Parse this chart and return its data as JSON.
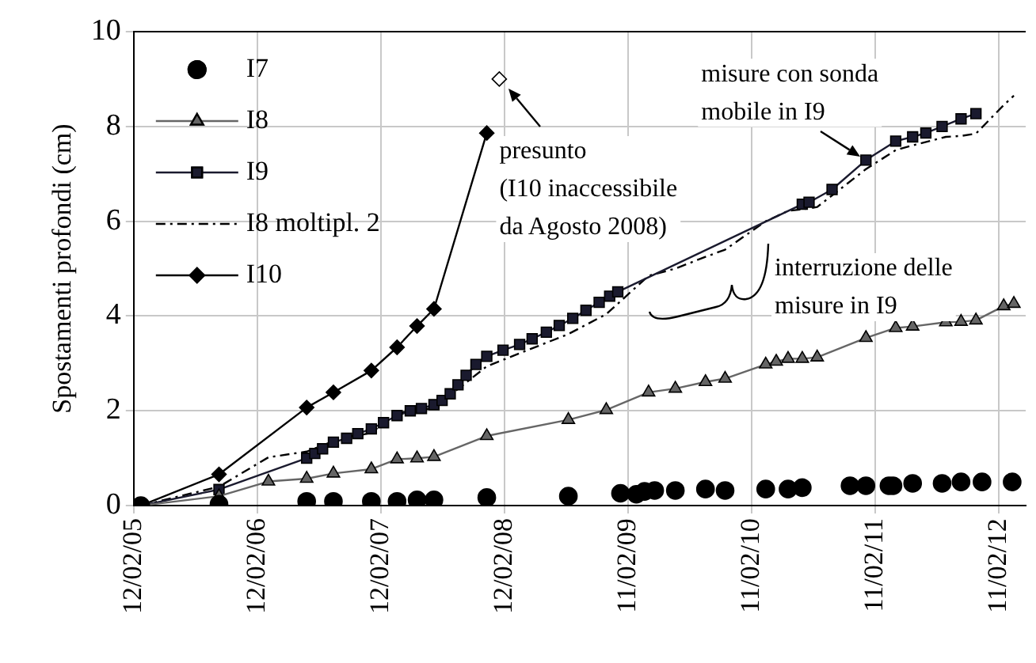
{
  "chart_data": {
    "type": "line",
    "ylabel": "Spostamenti profondi (cm)",
    "xlim": [
      "2005-02-12",
      "2012-05-01"
    ],
    "xticks": [
      {
        "value": "2005-02-12",
        "label": "12/02/05"
      },
      {
        "value": "2006-02-12",
        "label": "12/02/06"
      },
      {
        "value": "2007-02-12",
        "label": "12/02/07"
      },
      {
        "value": "2008-02-12",
        "label": "12/02/08"
      },
      {
        "value": "2009-02-11",
        "label": "11/02/09"
      },
      {
        "value": "2010-02-11",
        "label": "11/02/10"
      },
      {
        "value": "2011-02-11",
        "label": "11/02/11"
      },
      {
        "value": "2012-02-11",
        "label": "11/02/12"
      }
    ],
    "ylim": [
      0,
      10
    ],
    "yticks": [
      0,
      2,
      4,
      6,
      8,
      10
    ],
    "grid": true,
    "legend": "top left",
    "series": [
      {
        "name": "I7",
        "type": "scatter",
        "marker": "circle",
        "color": "#000000",
        "x": [
          "2005-03-05",
          "2005-10-22",
          "2006-07-08",
          "2006-09-25",
          "2007-01-15",
          "2007-04-01",
          "2007-05-30",
          "2007-07-19",
          "2007-12-22",
          "2008-08-19",
          "2009-01-20",
          "2009-03-08",
          "2009-04-01",
          "2009-05-01",
          "2009-07-01",
          "2009-09-28",
          "2009-11-25",
          "2010-03-25",
          "2010-05-30",
          "2010-07-11",
          "2010-11-29",
          "2011-01-15",
          "2011-03-24",
          "2011-04-05",
          "2011-06-02",
          "2011-08-28",
          "2011-10-23",
          "2011-12-24",
          "2012-03-22"
        ],
        "values": [
          0,
          0.03,
          0.09,
          0.09,
          0.09,
          0.09,
          0.12,
          0.12,
          0.17,
          0.2,
          0.26,
          0.24,
          0.3,
          0.32,
          0.32,
          0.35,
          0.32,
          0.35,
          0.35,
          0.38,
          0.42,
          0.42,
          0.42,
          0.42,
          0.47,
          0.47,
          0.5,
          0.5,
          0.5
        ]
      },
      {
        "name": "I8",
        "type": "line",
        "marker": "triangle",
        "color": "#666666",
        "x": [
          "2005-03-05",
          "2005-10-22",
          "2006-03-17",
          "2006-07-08",
          "2006-09-25",
          "2007-01-15",
          "2007-04-01",
          "2007-05-30",
          "2007-07-19",
          "2007-12-22",
          "2008-08-19",
          "2008-12-09",
          "2009-04-13",
          "2009-07-01",
          "2009-09-28",
          "2009-11-25",
          "2010-03-25",
          "2010-04-25",
          "2010-05-30",
          "2010-07-11",
          "2010-08-24",
          "2011-01-15",
          "2011-04-13",
          "2011-06-02",
          "2011-09-08",
          "2011-10-23",
          "2011-12-06",
          "2012-02-26",
          "2012-03-27"
        ],
        "values": [
          0,
          0.2,
          0.51,
          0.57,
          0.68,
          0.77,
          0.98,
          1.0,
          1.03,
          1.47,
          1.81,
          2.02,
          2.39,
          2.47,
          2.61,
          2.68,
          2.98,
          3.04,
          3.1,
          3.1,
          3.13,
          3.54,
          3.75,
          3.78,
          3.87,
          3.88,
          3.91,
          4.21,
          4.26
        ]
      },
      {
        "name": "I9",
        "type": "line",
        "marker": "square",
        "color": "#1a1a2e",
        "x": [
          "2005-03-05",
          "2005-10-22",
          "2006-07-08",
          "2006-08-01",
          "2006-08-24",
          "2006-09-25",
          "2006-11-03",
          "2006-12-06",
          "2007-01-15",
          "2007-02-20",
          "2007-04-01",
          "2007-05-10",
          "2007-06-12",
          "2007-07-19",
          "2007-08-12",
          "2007-09-05",
          "2007-09-28",
          "2007-10-22",
          "2007-11-20",
          "2007-12-22",
          "2008-02-08",
          "2008-03-28",
          "2008-05-04",
          "2008-06-15",
          "2008-07-23",
          "2008-09-01",
          "2008-10-10",
          "2008-11-18",
          "2008-12-19",
          "2009-01-12",
          "2010-07-11",
          "2010-07-31",
          "2010-10-07",
          "2011-01-15",
          "2011-04-13",
          "2011-06-02",
          "2011-07-11",
          "2011-08-28",
          "2011-10-23",
          "2011-12-06"
        ],
        "values": [
          0,
          0.34,
          1.0,
          1.1,
          1.2,
          1.34,
          1.42,
          1.52,
          1.62,
          1.75,
          1.9,
          2.0,
          2.05,
          2.13,
          2.22,
          2.36,
          2.55,
          2.75,
          2.98,
          3.15,
          3.28,
          3.4,
          3.52,
          3.66,
          3.8,
          3.95,
          4.12,
          4.29,
          4.42,
          4.51,
          6.36,
          6.4,
          6.67,
          7.29,
          7.69,
          7.78,
          7.86,
          8.0,
          8.16,
          8.27
        ]
      },
      {
        "name": "I8 moltipl. 2",
        "type": "line",
        "marker": "none",
        "line_style": "dashed",
        "color": "#000000",
        "x": [
          "2005-03-05",
          "2005-10-22",
          "2006-03-17",
          "2006-07-08",
          "2006-09-25",
          "2007-01-15",
          "2007-04-01",
          "2007-05-30",
          "2007-07-19",
          "2007-12-22",
          "2008-08-19",
          "2008-12-09",
          "2009-04-13",
          "2009-07-01",
          "2009-09-28",
          "2009-11-25",
          "2010-03-25",
          "2010-04-25",
          "2010-05-30",
          "2010-07-11",
          "2010-08-24",
          "2011-01-15",
          "2011-04-13",
          "2011-06-02",
          "2011-09-08",
          "2011-10-23",
          "2011-12-06",
          "2012-02-26",
          "2012-03-27"
        ],
        "values": [
          0,
          0.4,
          1.02,
          1.14,
          1.36,
          1.54,
          1.96,
          2.0,
          2.06,
          2.94,
          3.62,
          4.04,
          4.85,
          5.0,
          5.25,
          5.4,
          6.0,
          6.1,
          6.22,
          6.25,
          6.3,
          7.1,
          7.5,
          7.6,
          7.78,
          7.8,
          7.85,
          8.45,
          8.65
        ]
      },
      {
        "name": "I10",
        "type": "line",
        "marker": "diamond",
        "color": "#000000",
        "x": [
          "2005-03-05",
          "2005-10-22",
          "2006-07-08",
          "2006-09-25",
          "2007-01-15",
          "2007-04-01",
          "2007-05-30",
          "2007-07-19",
          "2007-12-22"
        ],
        "values": [
          0,
          0.66,
          2.07,
          2.39,
          2.85,
          3.34,
          3.79,
          4.15,
          7.86
        ]
      },
      {
        "type": "scatter",
        "marker": "diamond",
        "color": "#ffffff",
        "x": [
          "2008-01-28"
        ],
        "values": [
          9.0
        ]
      }
    ],
    "annotations": [
      {
        "text": "presunto\n(I10 inaccessibile\nda Agosto 2008)",
        "x": "2008-01-28",
        "y": 9.0
      },
      {
        "text": "misure con sonda\nmobile in I9",
        "x": "2011-01-15",
        "y": 7.29
      },
      "interruzione delle\nmisure in I9"
    ]
  }
}
